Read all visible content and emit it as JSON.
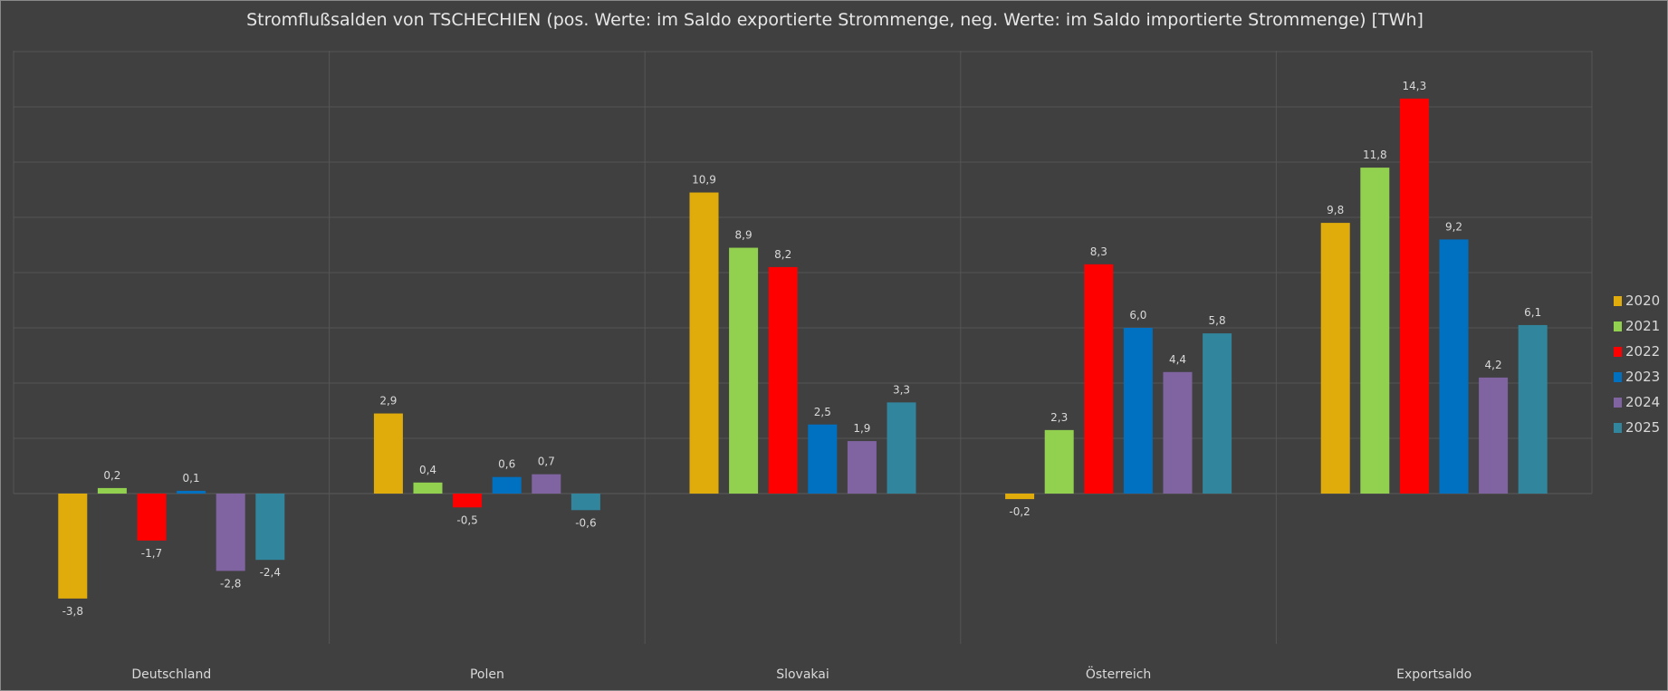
{
  "chart_data": {
    "type": "bar",
    "title": "Stromflußsalden von TSCHECHIEN (pos. Werte: im Saldo exportierte Strommenge, neg. Werte: im Saldo importierte Strommenge) [TWh]",
    "categories": [
      "Deutschland",
      "Polen",
      "Slovakai",
      "Österreich",
      "Exportsaldo"
    ],
    "series": [
      {
        "name": "2020",
        "color": "#E0AC0C",
        "values": [
          -3.8,
          2.9,
          10.9,
          -0.2,
          9.8
        ]
      },
      {
        "name": "2021",
        "color": "#92D050",
        "values": [
          0.2,
          0.4,
          8.9,
          2.3,
          11.8
        ]
      },
      {
        "name": "2022",
        "color": "#FF0000",
        "values": [
          -1.7,
          -0.5,
          8.2,
          8.3,
          14.3
        ]
      },
      {
        "name": "2023",
        "color": "#0070C0",
        "values": [
          0.1,
          0.6,
          2.5,
          6.0,
          9.2
        ]
      },
      {
        "name": "2024",
        "color": "#8064A2",
        "values": [
          -2.8,
          0.7,
          1.9,
          4.4,
          4.2
        ]
      },
      {
        "name": "2025",
        "color": "#31859C",
        "values": [
          -2.4,
          -0.6,
          3.3,
          5.8,
          6.1
        ]
      }
    ],
    "data_labels": "decimal comma, one decimal",
    "ylim": [
      -6,
      16
    ],
    "grid": true,
    "legend": "right",
    "y_tick_labels_shown": false
  }
}
